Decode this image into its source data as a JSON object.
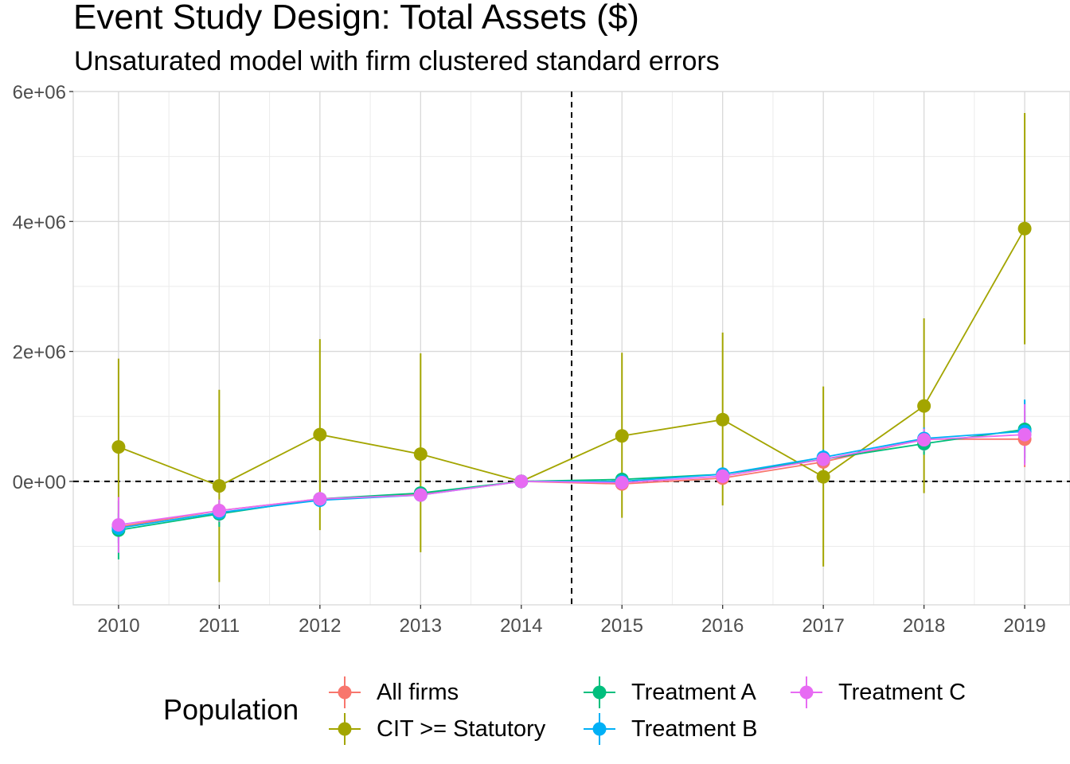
{
  "chart_data": {
    "type": "line",
    "title": "Event Study Design: Total Assets ($)",
    "subtitle": "Unsaturated model with firm clustered standard errors",
    "x": [
      2010,
      2011,
      2012,
      2013,
      2014,
      2015,
      2016,
      2017,
      2018,
      2019
    ],
    "x_ticks": [
      "2010",
      "2011",
      "2012",
      "2013",
      "2014",
      "2015",
      "2016",
      "2017",
      "2018",
      "2019"
    ],
    "y_ticks": [
      {
        "value": 0,
        "label": "0e+00"
      },
      {
        "value": 2000000,
        "label": "2e+06"
      },
      {
        "value": 4000000,
        "label": "4e+06"
      },
      {
        "value": 6000000,
        "label": "6e+06"
      }
    ],
    "xlim": [
      2009.55,
      2019.45
    ],
    "ylim": [
      -1900000,
      6000000
    ],
    "grid": true,
    "reference_lines": [
      {
        "orientation": "horizontal",
        "value": 0,
        "style": "dashed"
      },
      {
        "orientation": "vertical",
        "value": 2014.5,
        "style": "dashed"
      }
    ],
    "legend": {
      "title": "Population",
      "position": "bottom"
    },
    "series": [
      {
        "name": "All firms",
        "color": "#F8766D",
        "values": [
          -700000,
          -450000,
          -270000,
          -190000,
          0,
          -40000,
          50000,
          300000,
          650000,
          650000
        ],
        "lower": [
          -950000,
          -600000,
          -380000,
          -290000,
          0,
          -140000,
          -50000,
          180000,
          480000,
          220000
        ],
        "upper": [
          -450000,
          -300000,
          -160000,
          -90000,
          0,
          60000,
          150000,
          420000,
          820000,
          1080000
        ]
      },
      {
        "name": "CIT >= Statutory",
        "color": "#A3A500",
        "values": [
          530000,
          -70000,
          720000,
          420000,
          0,
          700000,
          950000,
          70000,
          1160000,
          3890000
        ],
        "lower": [
          -850000,
          -1550000,
          -750000,
          -1090000,
          0,
          -560000,
          -370000,
          -1310000,
          -180000,
          2110000
        ],
        "upper": [
          1890000,
          1410000,
          2190000,
          1970000,
          0,
          1980000,
          2290000,
          1460000,
          2510000,
          5670000
        ]
      },
      {
        "name": "Treatment A",
        "color": "#00BF7D",
        "values": [
          -750000,
          -500000,
          -270000,
          -180000,
          0,
          30000,
          110000,
          340000,
          580000,
          800000
        ],
        "lower": [
          -1200000,
          -700000,
          -380000,
          -280000,
          0,
          -70000,
          10000,
          220000,
          410000,
          360000
        ],
        "upper": [
          -300000,
          -300000,
          -160000,
          -80000,
          0,
          130000,
          210000,
          460000,
          750000,
          1240000
        ]
      },
      {
        "name": "Treatment B",
        "color": "#00B0F6",
        "values": [
          -720000,
          -480000,
          -290000,
          -210000,
          0,
          0,
          110000,
          370000,
          660000,
          770000
        ],
        "lower": [
          -950000,
          -620000,
          -400000,
          -310000,
          0,
          -100000,
          10000,
          250000,
          490000,
          280000
        ],
        "upper": [
          -490000,
          -340000,
          -180000,
          -110000,
          0,
          100000,
          210000,
          490000,
          830000,
          1260000
        ]
      },
      {
        "name": "Treatment C",
        "color": "#E76BF3",
        "values": [
          -670000,
          -450000,
          -270000,
          -210000,
          0,
          -20000,
          80000,
          340000,
          640000,
          720000
        ],
        "lower": [
          -1100000,
          -620000,
          -380000,
          -310000,
          0,
          -120000,
          -20000,
          220000,
          470000,
          250000
        ],
        "upper": [
          -240000,
          -280000,
          -160000,
          -110000,
          0,
          80000,
          180000,
          460000,
          810000,
          1190000
        ]
      }
    ]
  }
}
